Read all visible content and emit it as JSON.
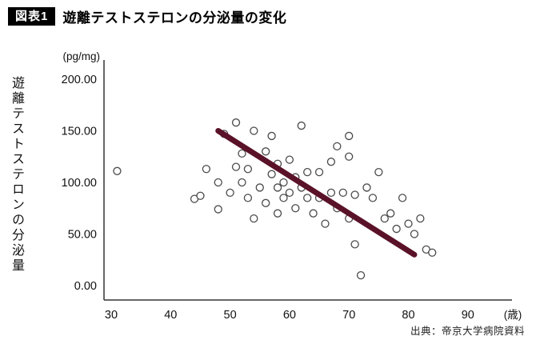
{
  "header": {
    "badge": "図表1",
    "title": "遊離テストステロンの分泌量の変化"
  },
  "source": "出典：帝京大学病院資料",
  "chart_data": {
    "type": "scatter",
    "title": "遊離テストステロンの分泌量の変化",
    "xlabel": "(歳)",
    "ylabel": "遊離テストステロンの分泌量",
    "y_unit": "(pg/mg)",
    "xlim": [
      25,
      97
    ],
    "ylim": [
      0,
      215
    ],
    "grid": false,
    "x_ticks": [
      30,
      40,
      50,
      60,
      70,
      80,
      90
    ],
    "y_ticks": [
      200,
      150,
      100,
      50,
      0
    ],
    "y_tick_labels": [
      "200.00",
      "150.00",
      "100.00",
      "50.00",
      "0.00"
    ],
    "points": [
      [
        31,
        111
      ],
      [
        44,
        84
      ],
      [
        45,
        87
      ],
      [
        46,
        113
      ],
      [
        48,
        100
      ],
      [
        48,
        74
      ],
      [
        49,
        147
      ],
      [
        50,
        90
      ],
      [
        51,
        158
      ],
      [
        51,
        115
      ],
      [
        52,
        128
      ],
      [
        52,
        100
      ],
      [
        53,
        113
      ],
      [
        53,
        85
      ],
      [
        54,
        150
      ],
      [
        54,
        65
      ],
      [
        55,
        95
      ],
      [
        56,
        130
      ],
      [
        56,
        80
      ],
      [
        57,
        145
      ],
      [
        57,
        108
      ],
      [
        58,
        118
      ],
      [
        58,
        95
      ],
      [
        58,
        70
      ],
      [
        59,
        100
      ],
      [
        59,
        85
      ],
      [
        60,
        122
      ],
      [
        60,
        90
      ],
      [
        61,
        105
      ],
      [
        61,
        75
      ],
      [
        62,
        155
      ],
      [
        62,
        95
      ],
      [
        63,
        110
      ],
      [
        63,
        85
      ],
      [
        64,
        70
      ],
      [
        65,
        110
      ],
      [
        65,
        85
      ],
      [
        66,
        60
      ],
      [
        67,
        120
      ],
      [
        67,
        90
      ],
      [
        68,
        135
      ],
      [
        68,
        75
      ],
      [
        69,
        90
      ],
      [
        70,
        145
      ],
      [
        70,
        125
      ],
      [
        70,
        65
      ],
      [
        71,
        88
      ],
      [
        71,
        40
      ],
      [
        72,
        10
      ],
      [
        73,
        95
      ],
      [
        74,
        85
      ],
      [
        75,
        110
      ],
      [
        76,
        65
      ],
      [
        77,
        70
      ],
      [
        78,
        55
      ],
      [
        79,
        85
      ],
      [
        80,
        60
      ],
      [
        81,
        50
      ],
      [
        82,
        65
      ],
      [
        83,
        35
      ],
      [
        84,
        32
      ]
    ],
    "trend_line": {
      "x1": 48,
      "y1": 150,
      "x2": 81,
      "y2": 30,
      "color": "#5a1228",
      "width": 7
    },
    "point_style": {
      "fill": "#ffffff",
      "stroke": "#4a4a4a",
      "radius": 4.5
    },
    "axis_color": "#333333",
    "legend": null
  }
}
